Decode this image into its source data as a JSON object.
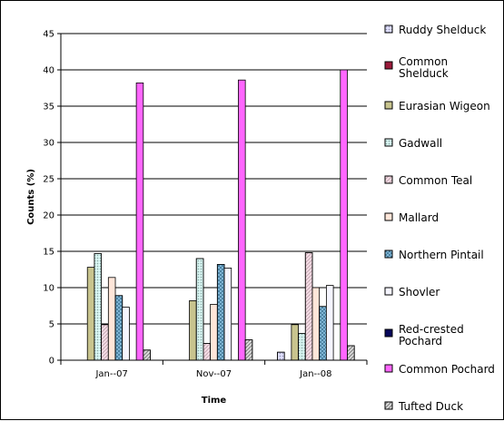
{
  "chart_data": {
    "type": "bar",
    "xlabel": "Time",
    "ylabel": "Counts (%)",
    "categories": [
      "Jan--07",
      "Nov--07",
      "Jan--08"
    ],
    "ylim": [
      0,
      45
    ],
    "yticks": [
      0,
      5,
      10,
      15,
      20,
      25,
      30,
      35,
      40,
      45
    ],
    "grid": "horizontal",
    "legend_position": "right",
    "series": [
      {
        "name": "Ruddy Shelduck",
        "values": [
          0,
          0,
          1.1
        ],
        "color": "#c8c8ff",
        "pattern": "dots"
      },
      {
        "name": "Common Shelduck",
        "values": [
          0,
          0,
          0
        ],
        "color": "#9b1b3b",
        "pattern": "solid"
      },
      {
        "name": "Eurasian Wigeon",
        "values": [
          12.8,
          8.2,
          4.9
        ],
        "color": "#c8c48e",
        "pattern": "solid"
      },
      {
        "name": "Gadwall",
        "values": [
          14.7,
          14.0,
          3.7
        ],
        "color": "#b8ece8",
        "pattern": "dots"
      },
      {
        "name": "Common Teal",
        "values": [
          4.9,
          2.3,
          14.8
        ],
        "color": "#f2c4d6",
        "pattern": "diag"
      },
      {
        "name": "Mallard",
        "values": [
          11.4,
          7.7,
          10.0
        ],
        "color": "#ffe6d9",
        "pattern": "solid"
      },
      {
        "name": "Northern Pintail",
        "values": [
          8.9,
          13.2,
          7.4
        ],
        "color": "#3c9ed8",
        "pattern": "cross"
      },
      {
        "name": "Shovler",
        "values": [
          7.3,
          12.7,
          10.3
        ],
        "color": "#f5f5ff",
        "pattern": "solid"
      },
      {
        "name": "Red-crested Pochard",
        "values": [
          0,
          0,
          0
        ],
        "color": "#06065a",
        "pattern": "solid"
      },
      {
        "name": "Common Pochard",
        "values": [
          38.2,
          38.6,
          40.0
        ],
        "color": "#ff66ff",
        "pattern": "solid"
      },
      {
        "name": "Tufted Duck",
        "values": [
          1.4,
          2.8,
          2.0
        ],
        "color": "#c8c8c8",
        "pattern": "hatch"
      }
    ]
  }
}
